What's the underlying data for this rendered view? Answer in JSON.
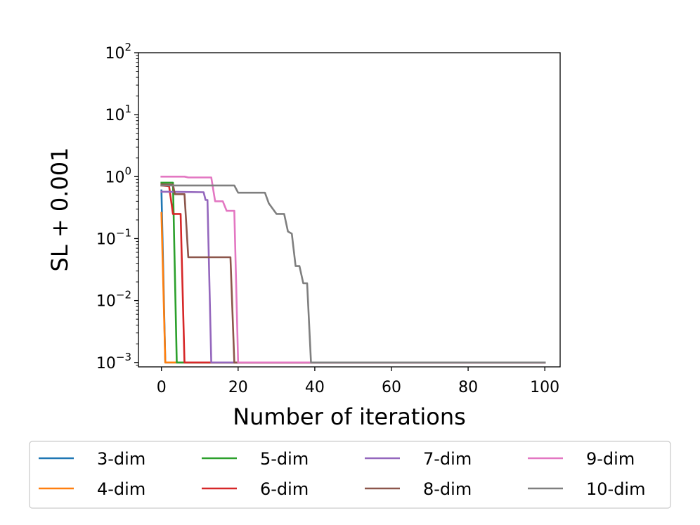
{
  "chart_data": {
    "type": "line",
    "xlabel": "Number of iterations",
    "ylabel": "SL + 0.001",
    "xlim": [
      -6,
      104
    ],
    "ylim": [
      0.00085,
      100
    ],
    "yscale": "log",
    "x_ticks": [
      {
        "value": 0,
        "label": "0"
      },
      {
        "value": 20,
        "label": "20"
      },
      {
        "value": 40,
        "label": "40"
      },
      {
        "value": 60,
        "label": "60"
      },
      {
        "value": 80,
        "label": "80"
      },
      {
        "value": 100,
        "label": "100"
      }
    ],
    "y_ticks": [
      {
        "value": 0.001,
        "base": "10",
        "exp": "−3"
      },
      {
        "value": 0.01,
        "base": "10",
        "exp": "−2"
      },
      {
        "value": 0.1,
        "base": "10",
        "exp": "−1"
      },
      {
        "value": 1,
        "base": "10",
        "exp": "0"
      },
      {
        "value": 10,
        "base": "10",
        "exp": "1"
      },
      {
        "value": 100,
        "base": "10",
        "exp": "2"
      }
    ],
    "grid": false,
    "legend_position": "below plot",
    "series": [
      {
        "name": "3-dim",
        "color": "#1f77b4",
        "points": [
          [
            0,
            0.6
          ],
          [
            1,
            0.001
          ],
          [
            100,
            0.001
          ]
        ]
      },
      {
        "name": "4-dim",
        "color": "#ff7f0e",
        "points": [
          [
            0,
            0.26
          ],
          [
            1,
            0.001
          ],
          [
            100,
            0.001
          ]
        ]
      },
      {
        "name": "5-dim",
        "color": "#2ca02c",
        "points": [
          [
            0,
            0.8
          ],
          [
            3,
            0.8
          ],
          [
            4,
            0.001
          ],
          [
            100,
            0.001
          ]
        ]
      },
      {
        "name": "6-dim",
        "color": "#d62728",
        "points": [
          [
            0,
            0.72
          ],
          [
            2,
            0.7
          ],
          [
            3,
            0.25
          ],
          [
            5,
            0.25
          ],
          [
            6,
            0.001
          ],
          [
            100,
            0.001
          ]
        ]
      },
      {
        "name": "7-dim",
        "color": "#9467bd",
        "points": [
          [
            0,
            0.57
          ],
          [
            11,
            0.56
          ],
          [
            11.5,
            0.42
          ],
          [
            12,
            0.42
          ],
          [
            13,
            0.001
          ],
          [
            100,
            0.001
          ]
        ]
      },
      {
        "name": "8-dim",
        "color": "#8c564b",
        "points": [
          [
            0,
            0.75
          ],
          [
            3,
            0.74
          ],
          [
            3.5,
            0.52
          ],
          [
            6,
            0.52
          ],
          [
            7,
            0.05
          ],
          [
            18,
            0.05
          ],
          [
            19,
            0.001
          ],
          [
            100,
            0.001
          ]
        ]
      },
      {
        "name": "9-dim",
        "color": "#e377c2",
        "points": [
          [
            0,
            1.0
          ],
          [
            6,
            1.0
          ],
          [
            7,
            0.97
          ],
          [
            13,
            0.97
          ],
          [
            14,
            0.4
          ],
          [
            16,
            0.4
          ],
          [
            17,
            0.28
          ],
          [
            19,
            0.28
          ],
          [
            20,
            0.001
          ],
          [
            100,
            0.001
          ]
        ]
      },
      {
        "name": "10-dim",
        "color": "#7f7f7f",
        "points": [
          [
            0,
            0.72
          ],
          [
            19,
            0.72
          ],
          [
            20,
            0.55
          ],
          [
            27,
            0.55
          ],
          [
            28,
            0.37
          ],
          [
            30,
            0.25
          ],
          [
            32,
            0.25
          ],
          [
            33,
            0.13
          ],
          [
            34,
            0.12
          ],
          [
            35,
            0.036
          ],
          [
            36,
            0.036
          ],
          [
            37,
            0.019
          ],
          [
            38,
            0.019
          ],
          [
            39,
            0.001
          ],
          [
            100,
            0.001
          ]
        ]
      }
    ]
  }
}
